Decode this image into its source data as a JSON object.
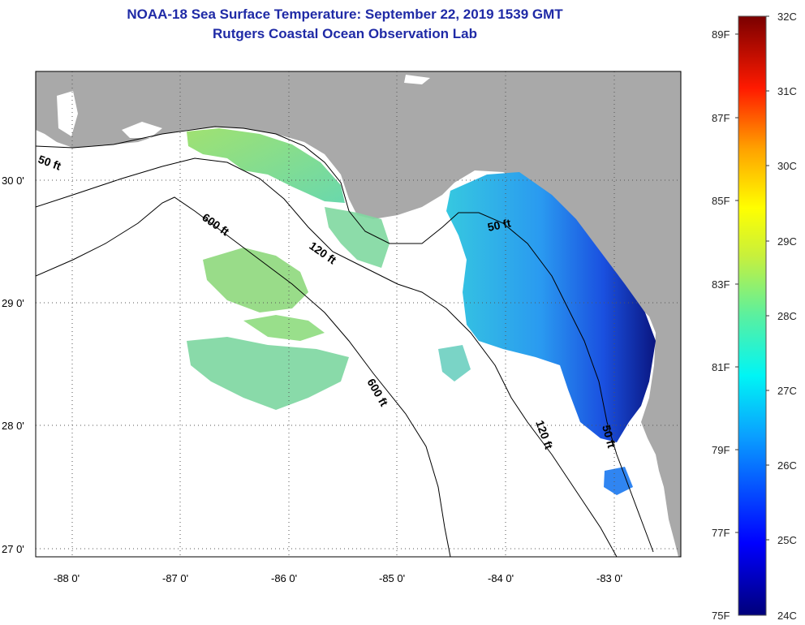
{
  "header": {
    "title": "NOAA-18 Sea Surface Temperature:  September 22, 2019 1539 GMT",
    "subtitle": "Rutgers Coastal Ocean Observation Lab"
  },
  "map": {
    "lat_labels": [
      "30 0'",
      "29 0'",
      "28 0'",
      "27 0'"
    ],
    "lon_labels": [
      "-88 0'",
      "-87 0'",
      "-86 0'",
      "-85 0'",
      "-84 0'",
      "-83 0'"
    ],
    "depth_labels": [
      "50 ft",
      "600 ft",
      "120 ft",
      "50 ft",
      "600 ft",
      "120 ft",
      "50 ft"
    ]
  },
  "colorbar": {
    "fahrenheit": [
      "89F",
      "87F",
      "85F",
      "83F",
      "81F",
      "79F",
      "77F",
      "75F"
    ],
    "celsius": [
      "32C",
      "31C",
      "30C",
      "29C",
      "28C",
      "27C",
      "26C",
      "25C",
      "24C"
    ]
  },
  "colors": {
    "land": "#a9a9a9",
    "title": "#1f2aa6",
    "cold": "#0a1a9a",
    "warm": "#7ed36a"
  }
}
